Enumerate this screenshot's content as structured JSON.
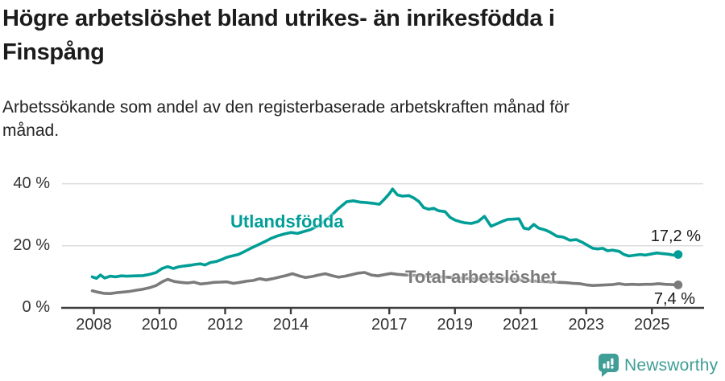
{
  "header": {
    "title": "Högre arbetslöshet bland utrikes- än inrikesfödda i\nFinspång",
    "subtitle": "Arbetssökande som andel av den registerbaserade arbetskraften månad för\nmånad."
  },
  "branding": {
    "wordmark": "Newsworthy",
    "color": "#3f9e96"
  },
  "colors": {
    "accent_teal": "#009e96",
    "line_gray": "#7b7b7b",
    "axis": "#3d3d3d",
    "gridline": "#dcdcdc",
    "text_dark": "#1c1c1c"
  },
  "chart_data": {
    "type": "line",
    "title": "Högre arbetslöshet bland utrikes- än inrikesfödda i Finspång",
    "subtitle": "Arbetssökande som andel av den registerbaserade arbetskraften månad för månad.",
    "unit": "%",
    "grid": "horizontal-only",
    "legend_position": "inline-labels-on-lines",
    "xlim": [
      2007.0,
      2026.6
    ],
    "ylim": [
      0,
      44
    ],
    "x_ticks": [
      2008,
      2010,
      2012,
      2014,
      2017,
      2019,
      2021,
      2023,
      2025
    ],
    "y_ticks": [
      {
        "value": 0,
        "label": "0 %"
      },
      {
        "value": 20,
        "label": "20 %"
      },
      {
        "value": 40,
        "label": "40 %"
      }
    ],
    "series": [
      {
        "name": "Utlandsfödda",
        "color": "#009e96",
        "end_label": "17,2 %",
        "end_value": 17.2,
        "points": [
          [
            2007.95,
            10.0
          ],
          [
            2008.08,
            9.5
          ],
          [
            2008.2,
            10.6
          ],
          [
            2008.33,
            9.6
          ],
          [
            2008.5,
            10.2
          ],
          [
            2008.67,
            10.0
          ],
          [
            2008.83,
            10.3
          ],
          [
            2009.0,
            10.2
          ],
          [
            2009.25,
            10.3
          ],
          [
            2009.5,
            10.4
          ],
          [
            2009.7,
            10.8
          ],
          [
            2009.9,
            11.4
          ],
          [
            2010.08,
            12.7
          ],
          [
            2010.25,
            13.3
          ],
          [
            2010.42,
            12.7
          ],
          [
            2010.58,
            13.2
          ],
          [
            2010.75,
            13.5
          ],
          [
            2010.92,
            13.7
          ],
          [
            2011.08,
            14.0
          ],
          [
            2011.25,
            14.2
          ],
          [
            2011.38,
            13.8
          ],
          [
            2011.55,
            14.6
          ],
          [
            2011.75,
            15.0
          ],
          [
            2011.9,
            15.6
          ],
          [
            2012.05,
            16.3
          ],
          [
            2012.2,
            16.7
          ],
          [
            2012.4,
            17.2
          ],
          [
            2012.6,
            18.2
          ],
          [
            2012.8,
            19.3
          ],
          [
            2013.0,
            20.3
          ],
          [
            2013.2,
            21.3
          ],
          [
            2013.4,
            22.4
          ],
          [
            2013.6,
            23.2
          ],
          [
            2013.8,
            23.8
          ],
          [
            2014.0,
            24.3
          ],
          [
            2014.2,
            24.0
          ],
          [
            2014.4,
            24.6
          ],
          [
            2014.6,
            25.2
          ],
          [
            2014.8,
            26.3
          ],
          [
            2015.0,
            27.7
          ],
          [
            2015.2,
            29.4
          ],
          [
            2015.45,
            32.0
          ],
          [
            2015.7,
            34.2
          ],
          [
            2015.9,
            34.5
          ],
          [
            2016.1,
            34.1
          ],
          [
            2016.3,
            33.9
          ],
          [
            2016.5,
            33.7
          ],
          [
            2016.7,
            33.4
          ],
          [
            2016.85,
            35.0
          ],
          [
            2017.0,
            36.8
          ],
          [
            2017.1,
            38.3
          ],
          [
            2017.25,
            36.4
          ],
          [
            2017.4,
            36.0
          ],
          [
            2017.6,
            36.2
          ],
          [
            2017.75,
            35.4
          ],
          [
            2017.9,
            34.3
          ],
          [
            2018.05,
            32.3
          ],
          [
            2018.2,
            31.8
          ],
          [
            2018.35,
            32.1
          ],
          [
            2018.5,
            31.3
          ],
          [
            2018.7,
            31.0
          ],
          [
            2018.85,
            29.2
          ],
          [
            2019.0,
            28.3
          ],
          [
            2019.15,
            27.8
          ],
          [
            2019.3,
            27.4
          ],
          [
            2019.5,
            27.2
          ],
          [
            2019.7,
            27.8
          ],
          [
            2019.9,
            29.5
          ],
          [
            2020.1,
            26.3
          ],
          [
            2020.3,
            27.2
          ],
          [
            2020.45,
            27.9
          ],
          [
            2020.6,
            28.5
          ],
          [
            2020.8,
            28.6
          ],
          [
            2020.95,
            28.7
          ],
          [
            2021.1,
            25.7
          ],
          [
            2021.25,
            25.4
          ],
          [
            2021.4,
            26.9
          ],
          [
            2021.55,
            25.7
          ],
          [
            2021.75,
            25.1
          ],
          [
            2021.9,
            24.4
          ],
          [
            2022.1,
            23.1
          ],
          [
            2022.3,
            22.8
          ],
          [
            2022.5,
            21.8
          ],
          [
            2022.7,
            22.0
          ],
          [
            2022.9,
            21.0
          ],
          [
            2023.05,
            20.1
          ],
          [
            2023.2,
            19.2
          ],
          [
            2023.35,
            19.0
          ],
          [
            2023.5,
            19.2
          ],
          [
            2023.65,
            18.4
          ],
          [
            2023.8,
            18.6
          ],
          [
            2024.0,
            18.2
          ],
          [
            2024.15,
            17.2
          ],
          [
            2024.3,
            16.7
          ],
          [
            2024.5,
            17.0
          ],
          [
            2024.65,
            17.2
          ],
          [
            2024.8,
            17.0
          ],
          [
            2025.0,
            17.4
          ],
          [
            2025.15,
            17.7
          ],
          [
            2025.3,
            17.5
          ],
          [
            2025.5,
            17.3
          ],
          [
            2025.65,
            17.0
          ],
          [
            2025.8,
            17.2
          ]
        ]
      },
      {
        "name": "Total arbetslöshet",
        "color": "#7b7b7b",
        "end_label": "7,4 %",
        "end_value": 7.4,
        "points": [
          [
            2007.95,
            5.5
          ],
          [
            2008.1,
            5.1
          ],
          [
            2008.3,
            4.7
          ],
          [
            2008.5,
            4.6
          ],
          [
            2008.7,
            4.9
          ],
          [
            2008.9,
            5.1
          ],
          [
            2009.1,
            5.3
          ],
          [
            2009.3,
            5.7
          ],
          [
            2009.5,
            6.0
          ],
          [
            2009.7,
            6.5
          ],
          [
            2009.9,
            7.2
          ],
          [
            2010.1,
            8.5
          ],
          [
            2010.25,
            9.2
          ],
          [
            2010.45,
            8.5
          ],
          [
            2010.65,
            8.2
          ],
          [
            2010.85,
            8.0
          ],
          [
            2011.05,
            8.3
          ],
          [
            2011.25,
            7.7
          ],
          [
            2011.45,
            7.9
          ],
          [
            2011.65,
            8.2
          ],
          [
            2011.85,
            8.3
          ],
          [
            2012.05,
            8.4
          ],
          [
            2012.25,
            7.9
          ],
          [
            2012.45,
            8.2
          ],
          [
            2012.65,
            8.6
          ],
          [
            2012.85,
            8.8
          ],
          [
            2013.05,
            9.4
          ],
          [
            2013.25,
            9.0
          ],
          [
            2013.45,
            9.4
          ],
          [
            2013.65,
            9.9
          ],
          [
            2013.85,
            10.4
          ],
          [
            2014.05,
            11.0
          ],
          [
            2014.25,
            10.3
          ],
          [
            2014.45,
            9.8
          ],
          [
            2014.65,
            10.1
          ],
          [
            2014.85,
            10.6
          ],
          [
            2015.05,
            11.0
          ],
          [
            2015.25,
            10.4
          ],
          [
            2015.45,
            9.9
          ],
          [
            2015.65,
            10.2
          ],
          [
            2015.85,
            10.7
          ],
          [
            2016.05,
            11.2
          ],
          [
            2016.25,
            11.4
          ],
          [
            2016.45,
            10.6
          ],
          [
            2016.65,
            10.3
          ],
          [
            2016.85,
            10.7
          ],
          [
            2017.05,
            11.1
          ],
          [
            2017.25,
            10.8
          ],
          [
            2017.5,
            10.6
          ],
          [
            2017.75,
            10.5
          ],
          [
            2018.0,
            10.3
          ],
          [
            2018.25,
            10.1
          ],
          [
            2018.5,
            10.0
          ],
          [
            2018.75,
            9.9
          ],
          [
            2019.0,
            9.7
          ],
          [
            2019.25,
            9.5
          ],
          [
            2019.5,
            9.4
          ],
          [
            2019.75,
            9.2
          ],
          [
            2020.0,
            9.2
          ],
          [
            2020.25,
            9.6
          ],
          [
            2020.5,
            9.5
          ],
          [
            2020.75,
            9.3
          ],
          [
            2021.0,
            9.0
          ],
          [
            2021.25,
            8.8
          ],
          [
            2021.5,
            8.6
          ],
          [
            2021.75,
            8.4
          ],
          [
            2022.0,
            8.3
          ],
          [
            2022.2,
            8.2
          ],
          [
            2022.4,
            8.1
          ],
          [
            2022.6,
            7.9
          ],
          [
            2022.8,
            7.8
          ],
          [
            2023.0,
            7.4
          ],
          [
            2023.2,
            7.2
          ],
          [
            2023.4,
            7.3
          ],
          [
            2023.6,
            7.4
          ],
          [
            2023.8,
            7.5
          ],
          [
            2024.0,
            7.8
          ],
          [
            2024.2,
            7.5
          ],
          [
            2024.4,
            7.6
          ],
          [
            2024.6,
            7.5
          ],
          [
            2024.8,
            7.6
          ],
          [
            2025.0,
            7.6
          ],
          [
            2025.2,
            7.8
          ],
          [
            2025.4,
            7.6
          ],
          [
            2025.6,
            7.5
          ],
          [
            2025.8,
            7.4
          ]
        ]
      }
    ]
  }
}
